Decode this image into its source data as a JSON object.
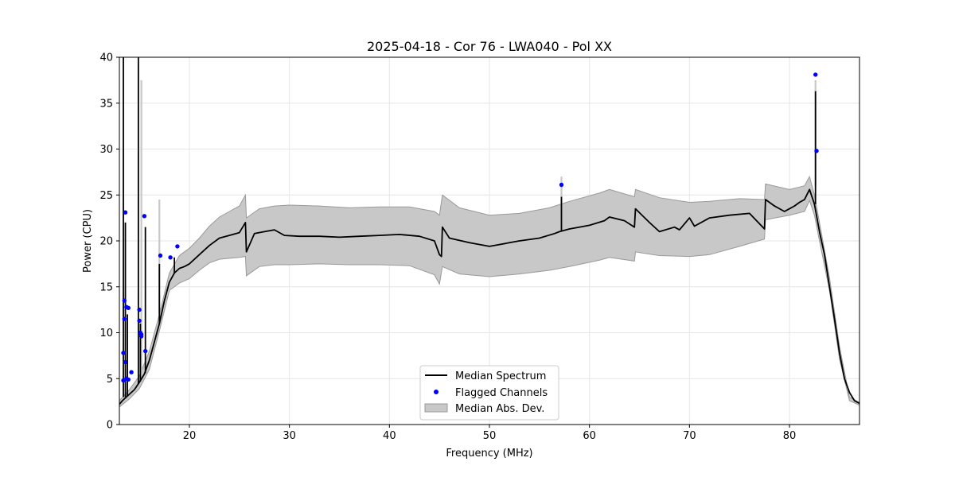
{
  "chart_data": {
    "type": "line",
    "title": "2025-04-18 - Cor 76 - LWA040 - Pol XX",
    "xlabel": "Frequency (MHz)",
    "ylabel": "Power (CPU)",
    "xlim": [
      13,
      87
    ],
    "ylim": [
      0,
      40
    ],
    "xticks": [
      20,
      30,
      40,
      50,
      60,
      70,
      80
    ],
    "yticks": [
      0,
      5,
      10,
      15,
      20,
      25,
      30,
      35,
      40
    ],
    "grid": true,
    "legend_position": "bottom-center",
    "legend": [
      "Median Spectrum",
      "Flagged Channels",
      "Median Abs. Dev."
    ],
    "colors": {
      "median": "#000000",
      "flagged": "#0000ff",
      "band": "#c8c8c8",
      "band_edge": "#999999",
      "grid": "#e6e6e6"
    },
    "median_spectrum": {
      "x": [
        13.0,
        13.3,
        13.5,
        13.7,
        14.0,
        14.5,
        15.0,
        15.5,
        16.0,
        16.5,
        17.0,
        17.5,
        18.0,
        18.5,
        19.0,
        19.5,
        20.0,
        21.0,
        22.0,
        23.0,
        24.0,
        25.0,
        25.6,
        25.7,
        26.5,
        27.5,
        28.5,
        29.5,
        31.0,
        33.0,
        35.0,
        37.0,
        39.0,
        41.0,
        43.0,
        44.5,
        45.0,
        45.2,
        45.3,
        46.0,
        48.0,
        50.0,
        51.0,
        52.0,
        53.0,
        55.0,
        56.5,
        57.0,
        58.0,
        60.0,
        61.5,
        62.0,
        63.5,
        64.5,
        64.6,
        66.0,
        67.0,
        68.5,
        69.0,
        70.0,
        70.5,
        72.0,
        74.0,
        76.0,
        77.5,
        77.6,
        78.5,
        79.5,
        80.0,
        80.5,
        81.0,
        81.5,
        82.0,
        82.5,
        83.0,
        83.5,
        84.0,
        84.5,
        85.0,
        85.5,
        86.0,
        86.5,
        87.0
      ],
      "y": [
        2.2,
        2.6,
        2.8,
        3.0,
        3.3,
        3.8,
        4.6,
        5.5,
        7.0,
        9.0,
        11.0,
        13.5,
        15.5,
        16.5,
        17.0,
        17.2,
        17.5,
        18.5,
        19.5,
        20.3,
        20.6,
        20.9,
        22.0,
        18.8,
        20.8,
        21.0,
        21.2,
        20.6,
        20.5,
        20.5,
        20.4,
        20.5,
        20.6,
        20.7,
        20.5,
        20.0,
        18.5,
        18.3,
        21.5,
        20.3,
        19.8,
        19.4,
        19.6,
        19.8,
        20.0,
        20.3,
        20.8,
        21.0,
        21.3,
        21.7,
        22.2,
        22.6,
        22.2,
        21.5,
        23.5,
        22.0,
        21.0,
        21.5,
        21.2,
        22.5,
        21.6,
        22.5,
        22.8,
        23.0,
        21.3,
        24.5,
        23.8,
        23.2,
        23.5,
        23.8,
        24.2,
        24.5,
        25.6,
        24.0,
        21.0,
        18.5,
        15.0,
        11.5,
        7.8,
        5.0,
        3.5,
        2.6,
        2.3
      ]
    },
    "mad_band": {
      "x": [
        13.0,
        14.0,
        15.0,
        16.0,
        17.0,
        18.0,
        19.0,
        20.0,
        21.0,
        22.0,
        23.0,
        24.0,
        25.0,
        25.6,
        25.7,
        27.0,
        28.5,
        30.0,
        33.0,
        36.0,
        39.0,
        42.0,
        44.5,
        45.0,
        45.3,
        47.0,
        50.0,
        53.0,
        56.0,
        58.0,
        61.0,
        62.0,
        64.5,
        64.6,
        67.0,
        70.0,
        72.0,
        75.0,
        77.5,
        77.6,
        80.0,
        81.5,
        82.0,
        82.5,
        83.0,
        84.0,
        85.0,
        86.0,
        87.0
      ],
      "upper": [
        2.6,
        3.8,
        5.3,
        8.0,
        12.0,
        16.5,
        18.4,
        19.2,
        20.3,
        21.6,
        22.6,
        23.2,
        23.8,
        25.0,
        22.5,
        23.5,
        23.8,
        23.9,
        23.8,
        23.6,
        23.7,
        23.7,
        23.2,
        22.8,
        25.0,
        23.6,
        22.8,
        23.0,
        23.6,
        24.3,
        25.2,
        25.6,
        24.8,
        25.6,
        24.7,
        24.2,
        24.3,
        24.6,
        24.5,
        26.2,
        25.6,
        26.0,
        27.0,
        25.0,
        22.0,
        16.0,
        8.5,
        3.0,
        2.4
      ],
      "lower": [
        1.9,
        2.8,
        3.9,
        6.0,
        10.2,
        14.6,
        15.4,
        15.9,
        16.8,
        17.6,
        18.0,
        18.1,
        18.2,
        18.3,
        16.2,
        17.2,
        17.4,
        17.4,
        17.5,
        17.4,
        17.4,
        17.3,
        16.3,
        15.3,
        17.2,
        16.4,
        16.1,
        16.4,
        16.8,
        17.2,
        17.9,
        18.2,
        17.8,
        18.8,
        18.4,
        18.3,
        18.5,
        19.4,
        20.2,
        22.3,
        22.8,
        23.2,
        24.4,
        22.8,
        20.0,
        14.6,
        7.1,
        2.6,
        2.1
      ]
    },
    "spikes": [
      {
        "x": 13.4,
        "y": 40.0,
        "base": 3.0
      },
      {
        "x": 13.6,
        "y": 22.0,
        "base": 3.0
      },
      {
        "x": 13.8,
        "y": 12.0,
        "base": 3.1
      },
      {
        "x": 14.9,
        "y": 40.0,
        "base": 4.4
      },
      {
        "x": 15.1,
        "y": 11.0,
        "base": 4.7
      },
      {
        "x": 15.6,
        "y": 21.5,
        "base": 5.6
      },
      {
        "x": 17.0,
        "y": 17.5,
        "base": 11.0
      },
      {
        "x": 18.5,
        "y": 18.2,
        "base": 16.5
      },
      {
        "x": 57.2,
        "y": 24.8,
        "base": 21.0
      },
      {
        "x": 82.6,
        "y": 36.3,
        "base": 24.0
      }
    ],
    "band_spikes": [
      {
        "x": 15.2,
        "y": 37.5,
        "base": 5.0
      },
      {
        "x": 17.0,
        "y": 24.5,
        "base": 12.0
      },
      {
        "x": 57.2,
        "y": 27.0,
        "base": 23.0
      },
      {
        "x": 82.6,
        "y": 37.5,
        "base": 26.0
      }
    ],
    "flagged_channels": {
      "x": [
        13.4,
        13.4,
        13.5,
        13.5,
        13.6,
        13.6,
        13.7,
        13.7,
        13.9,
        13.9,
        14.2,
        15.0,
        15.0,
        15.1,
        15.2,
        15.2,
        15.5,
        15.6,
        17.1,
        18.1,
        18.8,
        57.2,
        82.6,
        82.7
      ],
      "y": [
        4.8,
        7.8,
        11.5,
        13.5,
        23.1,
        6.8,
        5.0,
        12.8,
        4.9,
        12.7,
        5.7,
        12.5,
        11.3,
        10.0,
        9.6,
        9.8,
        22.7,
        8.0,
        18.4,
        18.2,
        19.4,
        26.1,
        38.1,
        29.8
      ]
    }
  }
}
